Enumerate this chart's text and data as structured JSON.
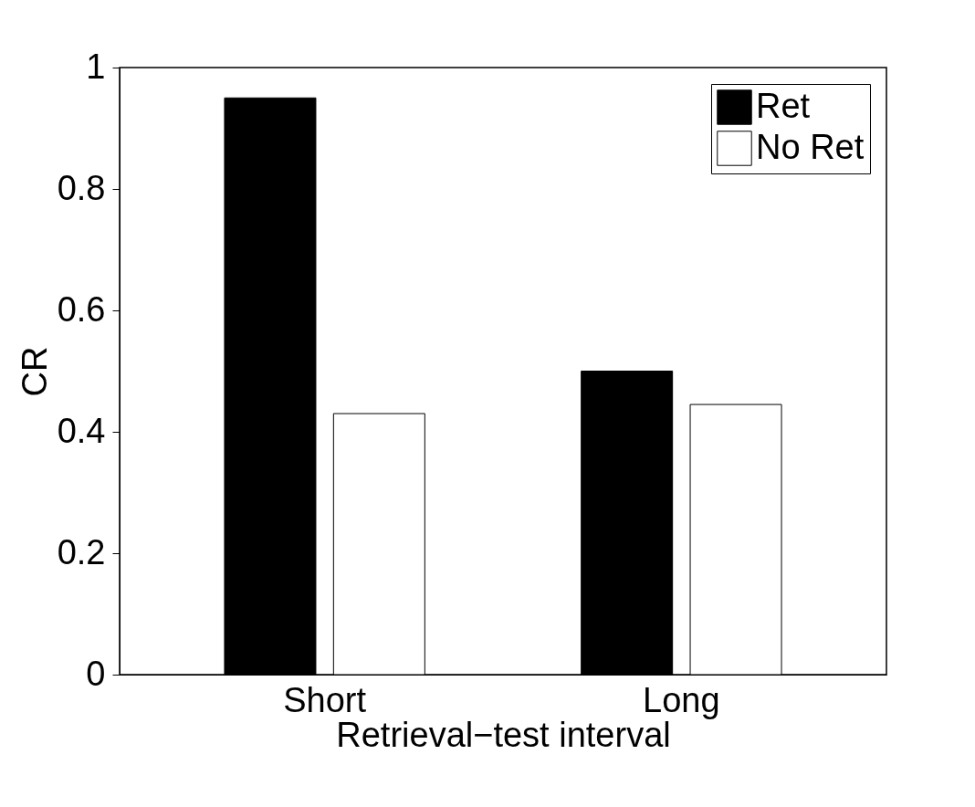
{
  "chart_data": {
    "type": "bar",
    "xlabel": "Retrieval−test interval",
    "ylabel": "CR",
    "categories": [
      "Short",
      "Long"
    ],
    "series": [
      {
        "name": "Ret",
        "color": "#000000",
        "values": [
          0.95,
          0.5
        ]
      },
      {
        "name": "No Ret",
        "color": "#ffffff",
        "values": [
          0.43,
          0.445
        ]
      }
    ],
    "ylim": [
      0,
      1
    ],
    "yticks": [
      0,
      0.2,
      0.4,
      0.6,
      0.8,
      1
    ],
    "grid": false,
    "legend": "top right"
  }
}
